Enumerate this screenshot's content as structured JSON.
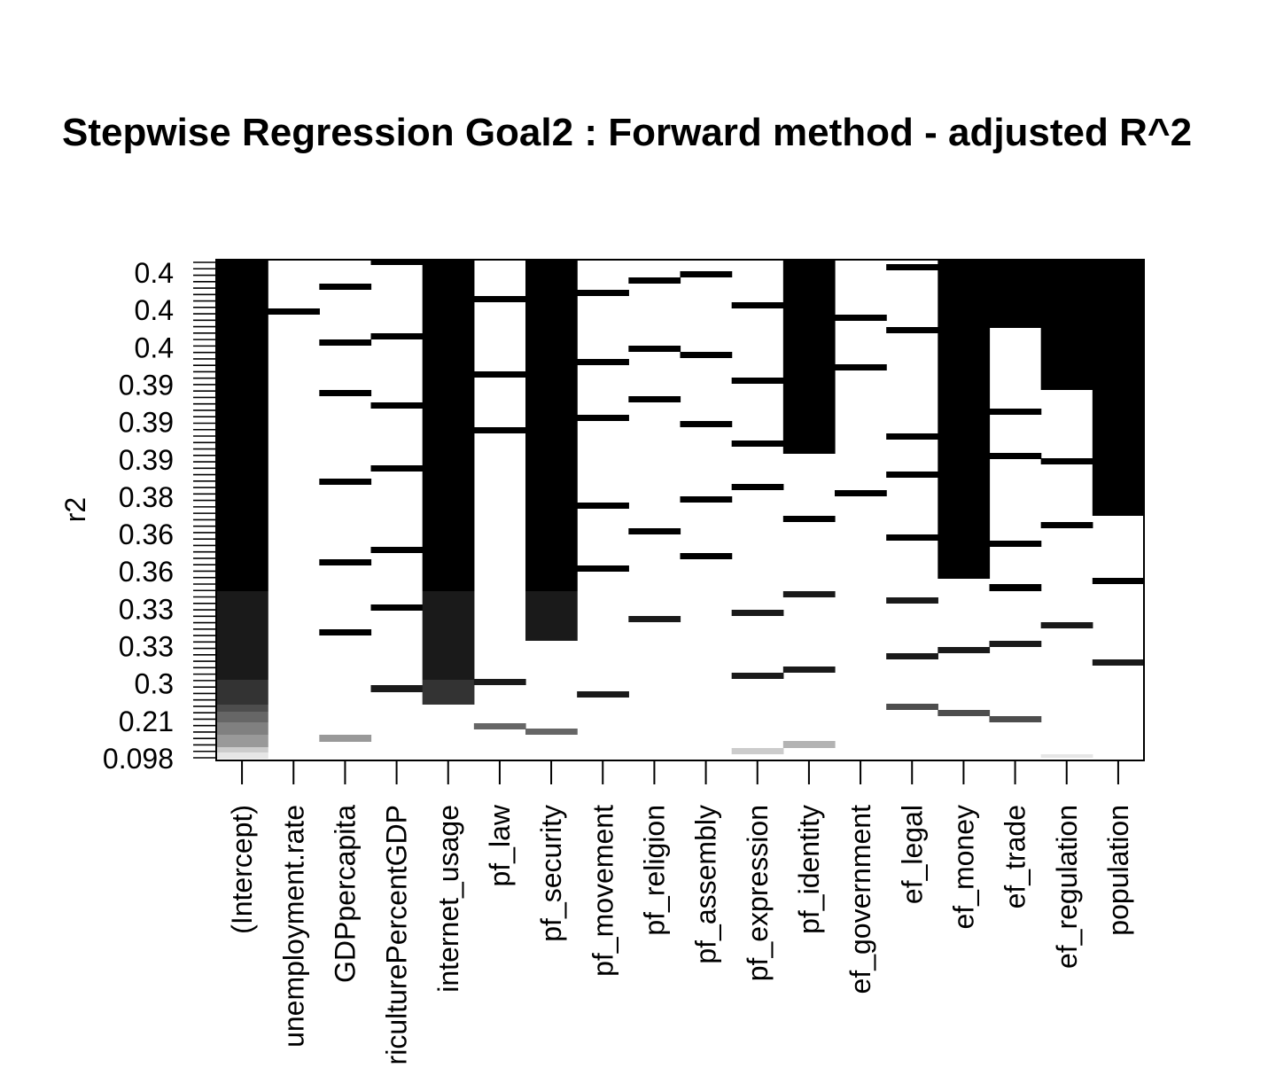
{
  "chart_data": {
    "type": "heatmap",
    "title": "Stepwise Regression Goal2 : Forward method - adjusted R^2",
    "ylabel": "r2",
    "xlabel": "",
    "y_tick_labels": [
      "0.4",
      "0.4",
      "0.4",
      "0.39",
      "0.39",
      "0.39",
      "0.38",
      "0.36",
      "0.36",
      "0.33",
      "0.33",
      "0.3",
      "0.21",
      "0.098"
    ],
    "categories": [
      "(Intercept)",
      "unemployment.rate",
      "GDPpercapita",
      "agriculturePercentGDP",
      "internet_usage",
      "pf_law",
      "pf_security",
      "pf_movement",
      "pf_religion",
      "pf_assembly",
      "pf_expression",
      "pf_identity",
      "ef_government",
      "ef_legal",
      "ef_money",
      "ef_trade",
      "ef_regulation",
      "population"
    ],
    "colors": {
      "full": "#000000",
      "levels": [
        "#1a1a1a",
        "#333333",
        "#4d4d4d",
        "#666666",
        "#808080",
        "#999999",
        "#b3b3b3",
        "#cccccc",
        "#e6e6e6"
      ],
      "background": "#ffffff"
    }
  }
}
